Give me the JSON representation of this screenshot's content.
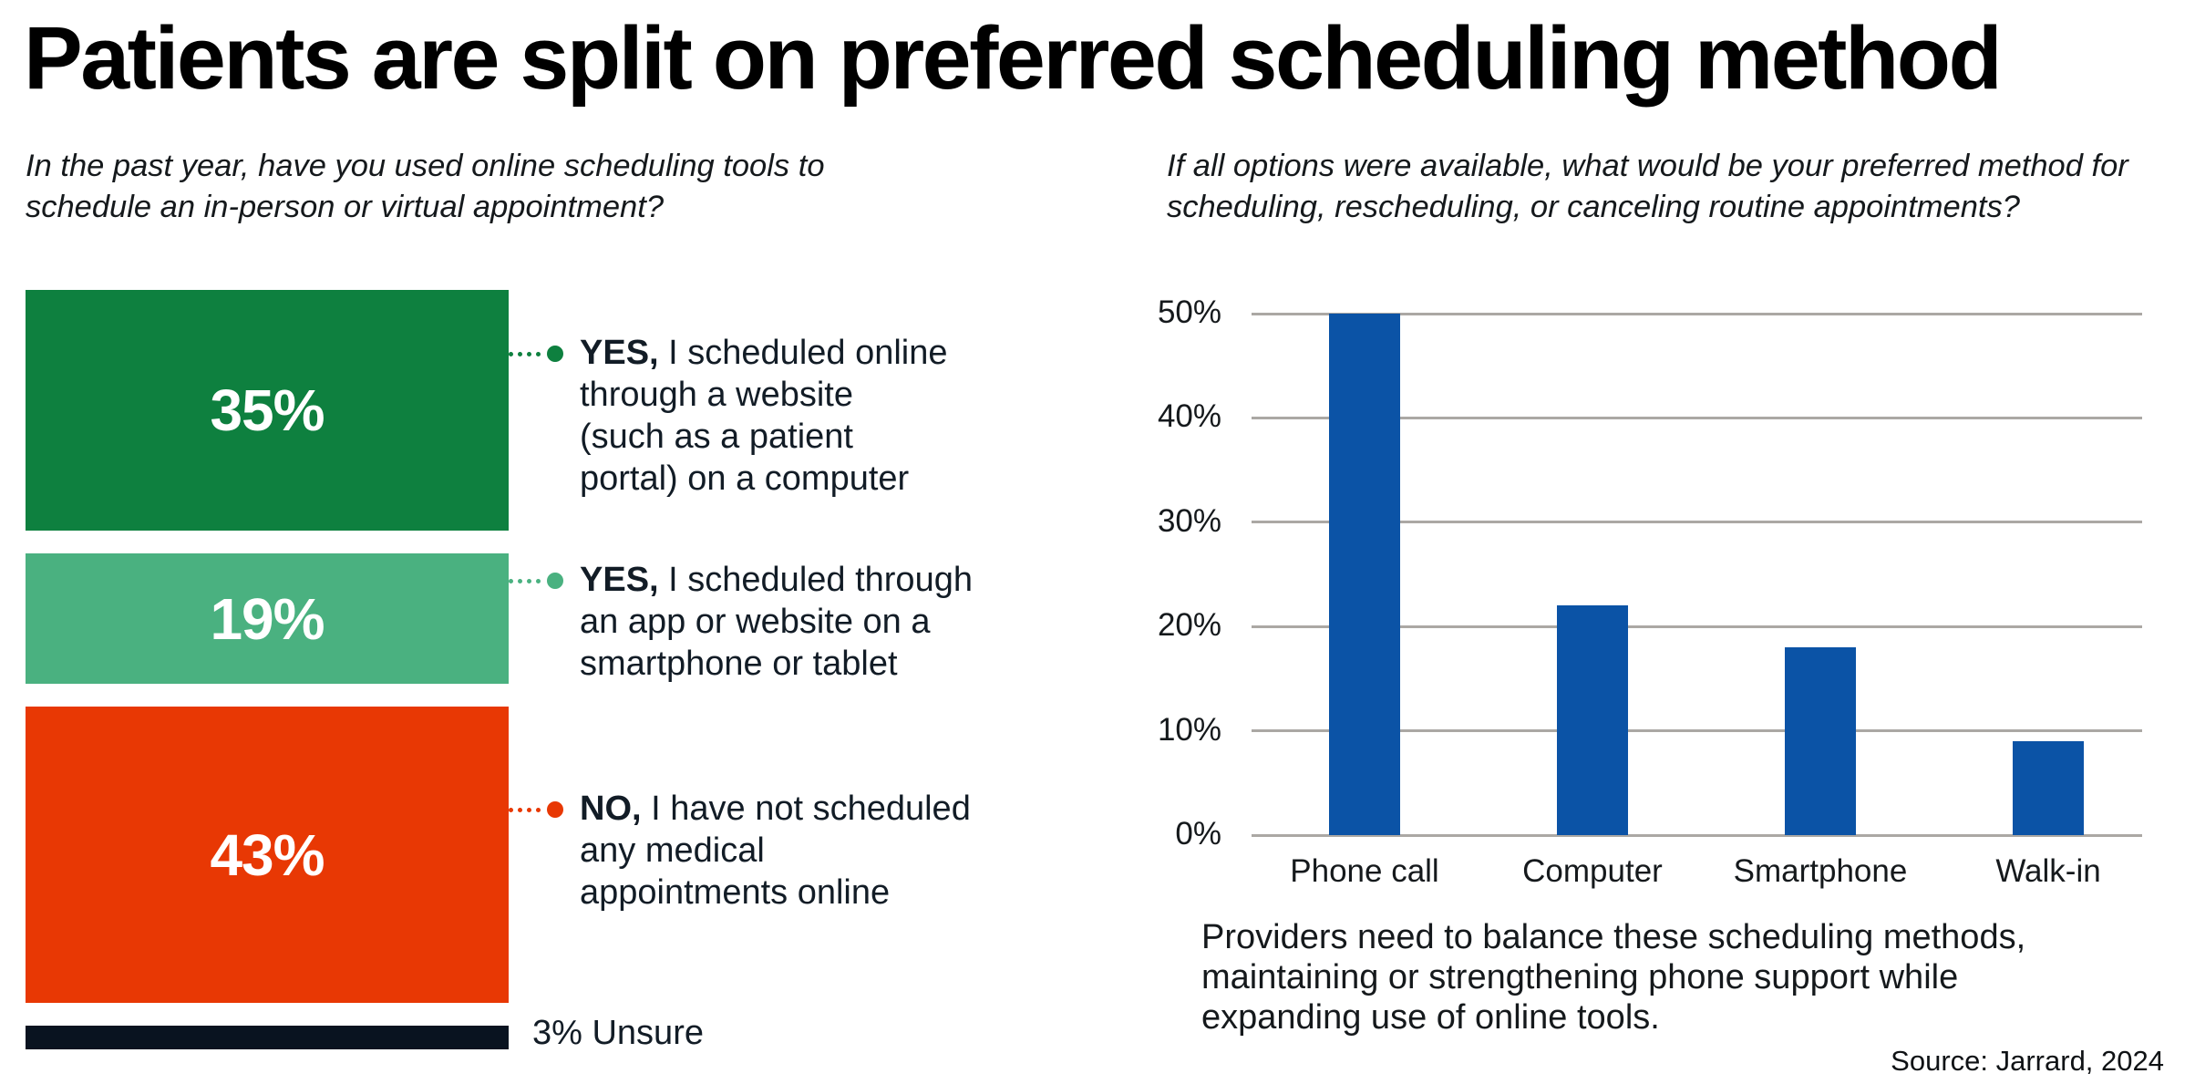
{
  "page": {
    "title": "Patients are split on preferred scheduling method",
    "source": "Source: Jarrard, 2024",
    "background": "#ffffff"
  },
  "left_chart": {
    "question": "In the past year, have you used online scheduling tools to schedule an in-person or virtual appointment?",
    "unsure_label": "3% Unsure"
  },
  "right_chart": {
    "question": "If all options were available, what would be your preferred method for scheduling, rescheduling, or canceling routine appointments?",
    "caption": "Providers need to balance these scheduling methods, maintaining or strengthening phone support while expanding use of online tools."
  },
  "chart_data": [
    {
      "type": "bar",
      "variant": "vertical-proportion-stack",
      "title": "In the past year, have you used online scheduling tools to schedule an in-person or virtual appointment?",
      "categories": [
        "YES, I scheduled online through a website (such as a patient portal) on a computer",
        "YES, I scheduled through an app or website on a smartphone or tablet",
        "NO, I have not scheduled any medical appointments online",
        "Unsure"
      ],
      "values": [
        35,
        19,
        43,
        3
      ],
      "value_labels": [
        "35%",
        "19%",
        "43%",
        "3% Unsure"
      ],
      "colors": [
        "#0E803F",
        "#4AB180",
        "#E83804",
        "#091320"
      ],
      "segments": [
        {
          "value": 35,
          "value_label": "35%",
          "bold": "YES,",
          "lines": [
            "I scheduled online",
            "through a website",
            "(such as a patient",
            "portal) on a computer"
          ],
          "color": "#0E803F"
        },
        {
          "value": 19,
          "value_label": "19%",
          "bold": "YES,",
          "lines": [
            "I scheduled through",
            "an app or website on a",
            "smartphone or tablet"
          ],
          "color": "#4AB180"
        },
        {
          "value": 43,
          "value_label": "43%",
          "bold": "NO,",
          "lines": [
            "I have not scheduled",
            "any medical",
            "appointments online"
          ],
          "color": "#E83804"
        },
        {
          "value": 3,
          "value_label": "3% Unsure",
          "bold": "",
          "lines": [],
          "color": "#091320"
        }
      ]
    },
    {
      "type": "bar",
      "title": "If all options were available, what would be your preferred method for scheduling, rescheduling, or canceling routine appointments?",
      "categories": [
        "Phone call",
        "Computer",
        "Smartphone",
        "Walk-in"
      ],
      "values": [
        50,
        22,
        18,
        9
      ],
      "ylim": [
        0,
        50
      ],
      "yticks": [
        0,
        10,
        20,
        30,
        40,
        50
      ],
      "ytick_labels": [
        "0%",
        "10%",
        "20%",
        "30%",
        "40%",
        "50%"
      ],
      "grid": true,
      "legend": "none",
      "bar_color": "#0B53A6",
      "gridline_color": "#ABA8A4"
    }
  ]
}
